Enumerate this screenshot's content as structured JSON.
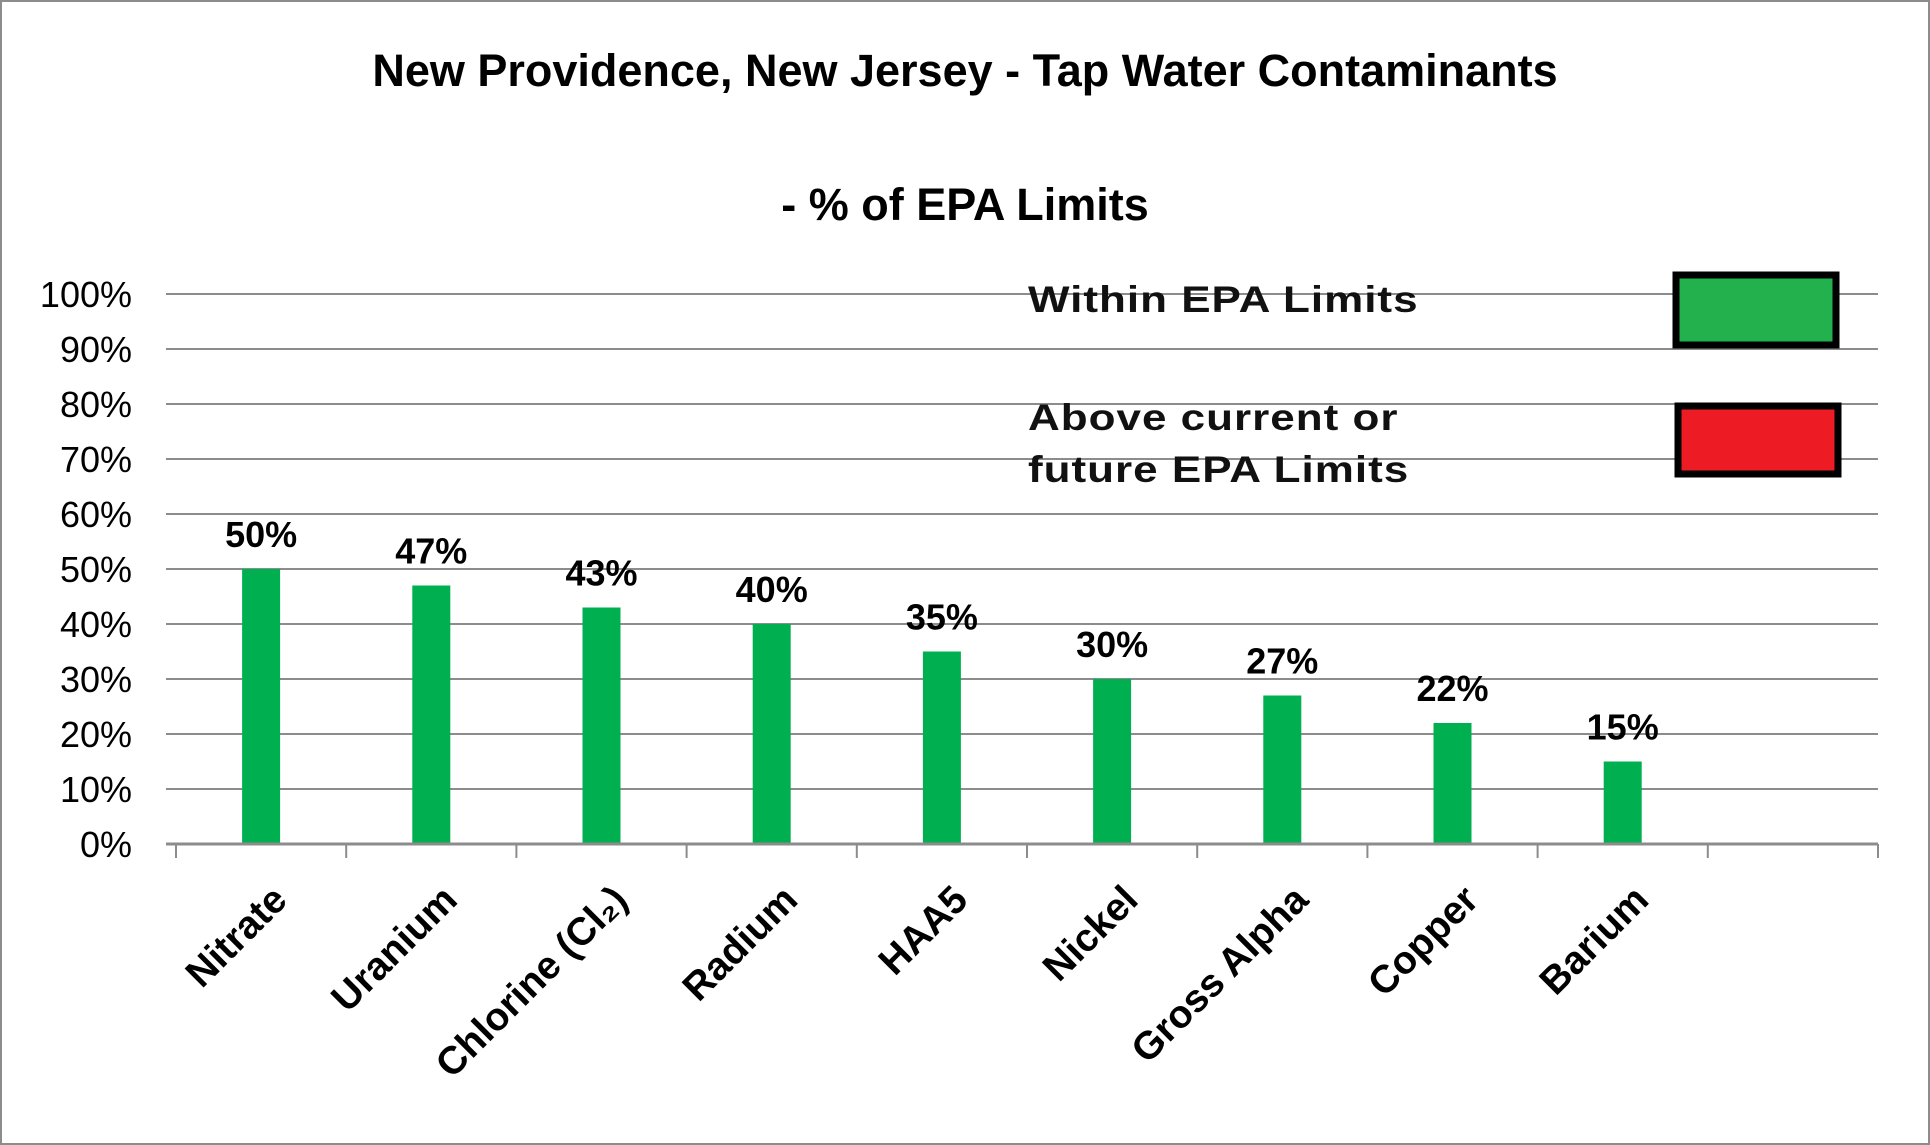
{
  "chart_data": {
    "type": "bar",
    "title": "New Providence, New Jersey - Tap Water Contaminants",
    "subtitle": "- % of EPA Limits",
    "categories": [
      "Nitrate",
      "Uranium",
      "Chlorine (Cl₂)",
      "Radium",
      "HAA5",
      "Nickel",
      "Gross Alpha",
      "Copper",
      "Barium"
    ],
    "values": [
      50,
      47,
      43,
      40,
      35,
      30,
      27,
      22,
      15
    ],
    "data_labels": [
      "50%",
      "47%",
      "43%",
      "40%",
      "35%",
      "30%",
      "27%",
      "22%",
      "15%"
    ],
    "y_ticks": [
      "0%",
      "10%",
      "20%",
      "30%",
      "40%",
      "50%",
      "60%",
      "70%",
      "80%",
      "90%",
      "100%"
    ],
    "ylim": [
      0,
      100
    ],
    "category_slots": 10,
    "grid": true,
    "bar_color": "#00b050",
    "legend": {
      "placement": "top-right",
      "items": [
        {
          "lines": [
            "Within  EPA Limits"
          ],
          "color": "#22b14c"
        },
        {
          "lines": [
            "Above current or",
            "future  EPA Limits"
          ],
          "color": "#ed1c24"
        }
      ]
    }
  }
}
